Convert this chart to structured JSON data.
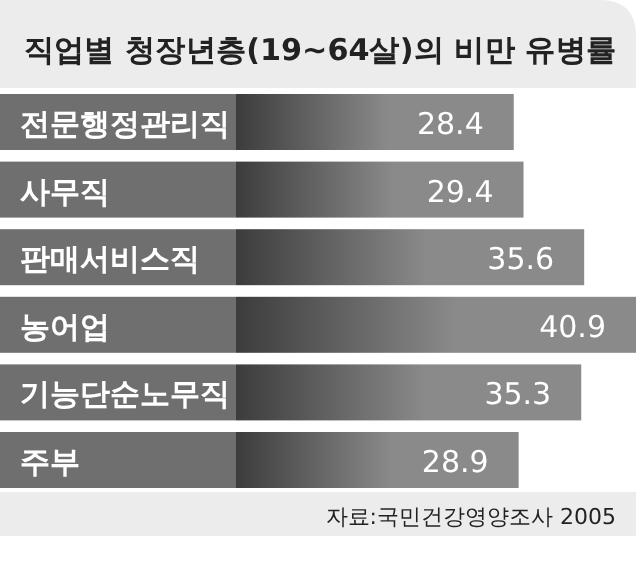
{
  "chart_data": {
    "type": "bar",
    "orientation": "horizontal",
    "title": "직업별 청장년층(19~64살)의 비만 유병률",
    "categories": [
      "전문행정관리직",
      "사무직",
      "판매서비스직",
      "농어업",
      "기능단순노무직",
      "주부"
    ],
    "values": [
      28.4,
      29.4,
      35.6,
      40.9,
      35.3,
      28.9
    ],
    "color": "#8a8a8a",
    "data_labels": true,
    "annotations": [
      "자료:국민건강영양조사 2005"
    ]
  }
}
